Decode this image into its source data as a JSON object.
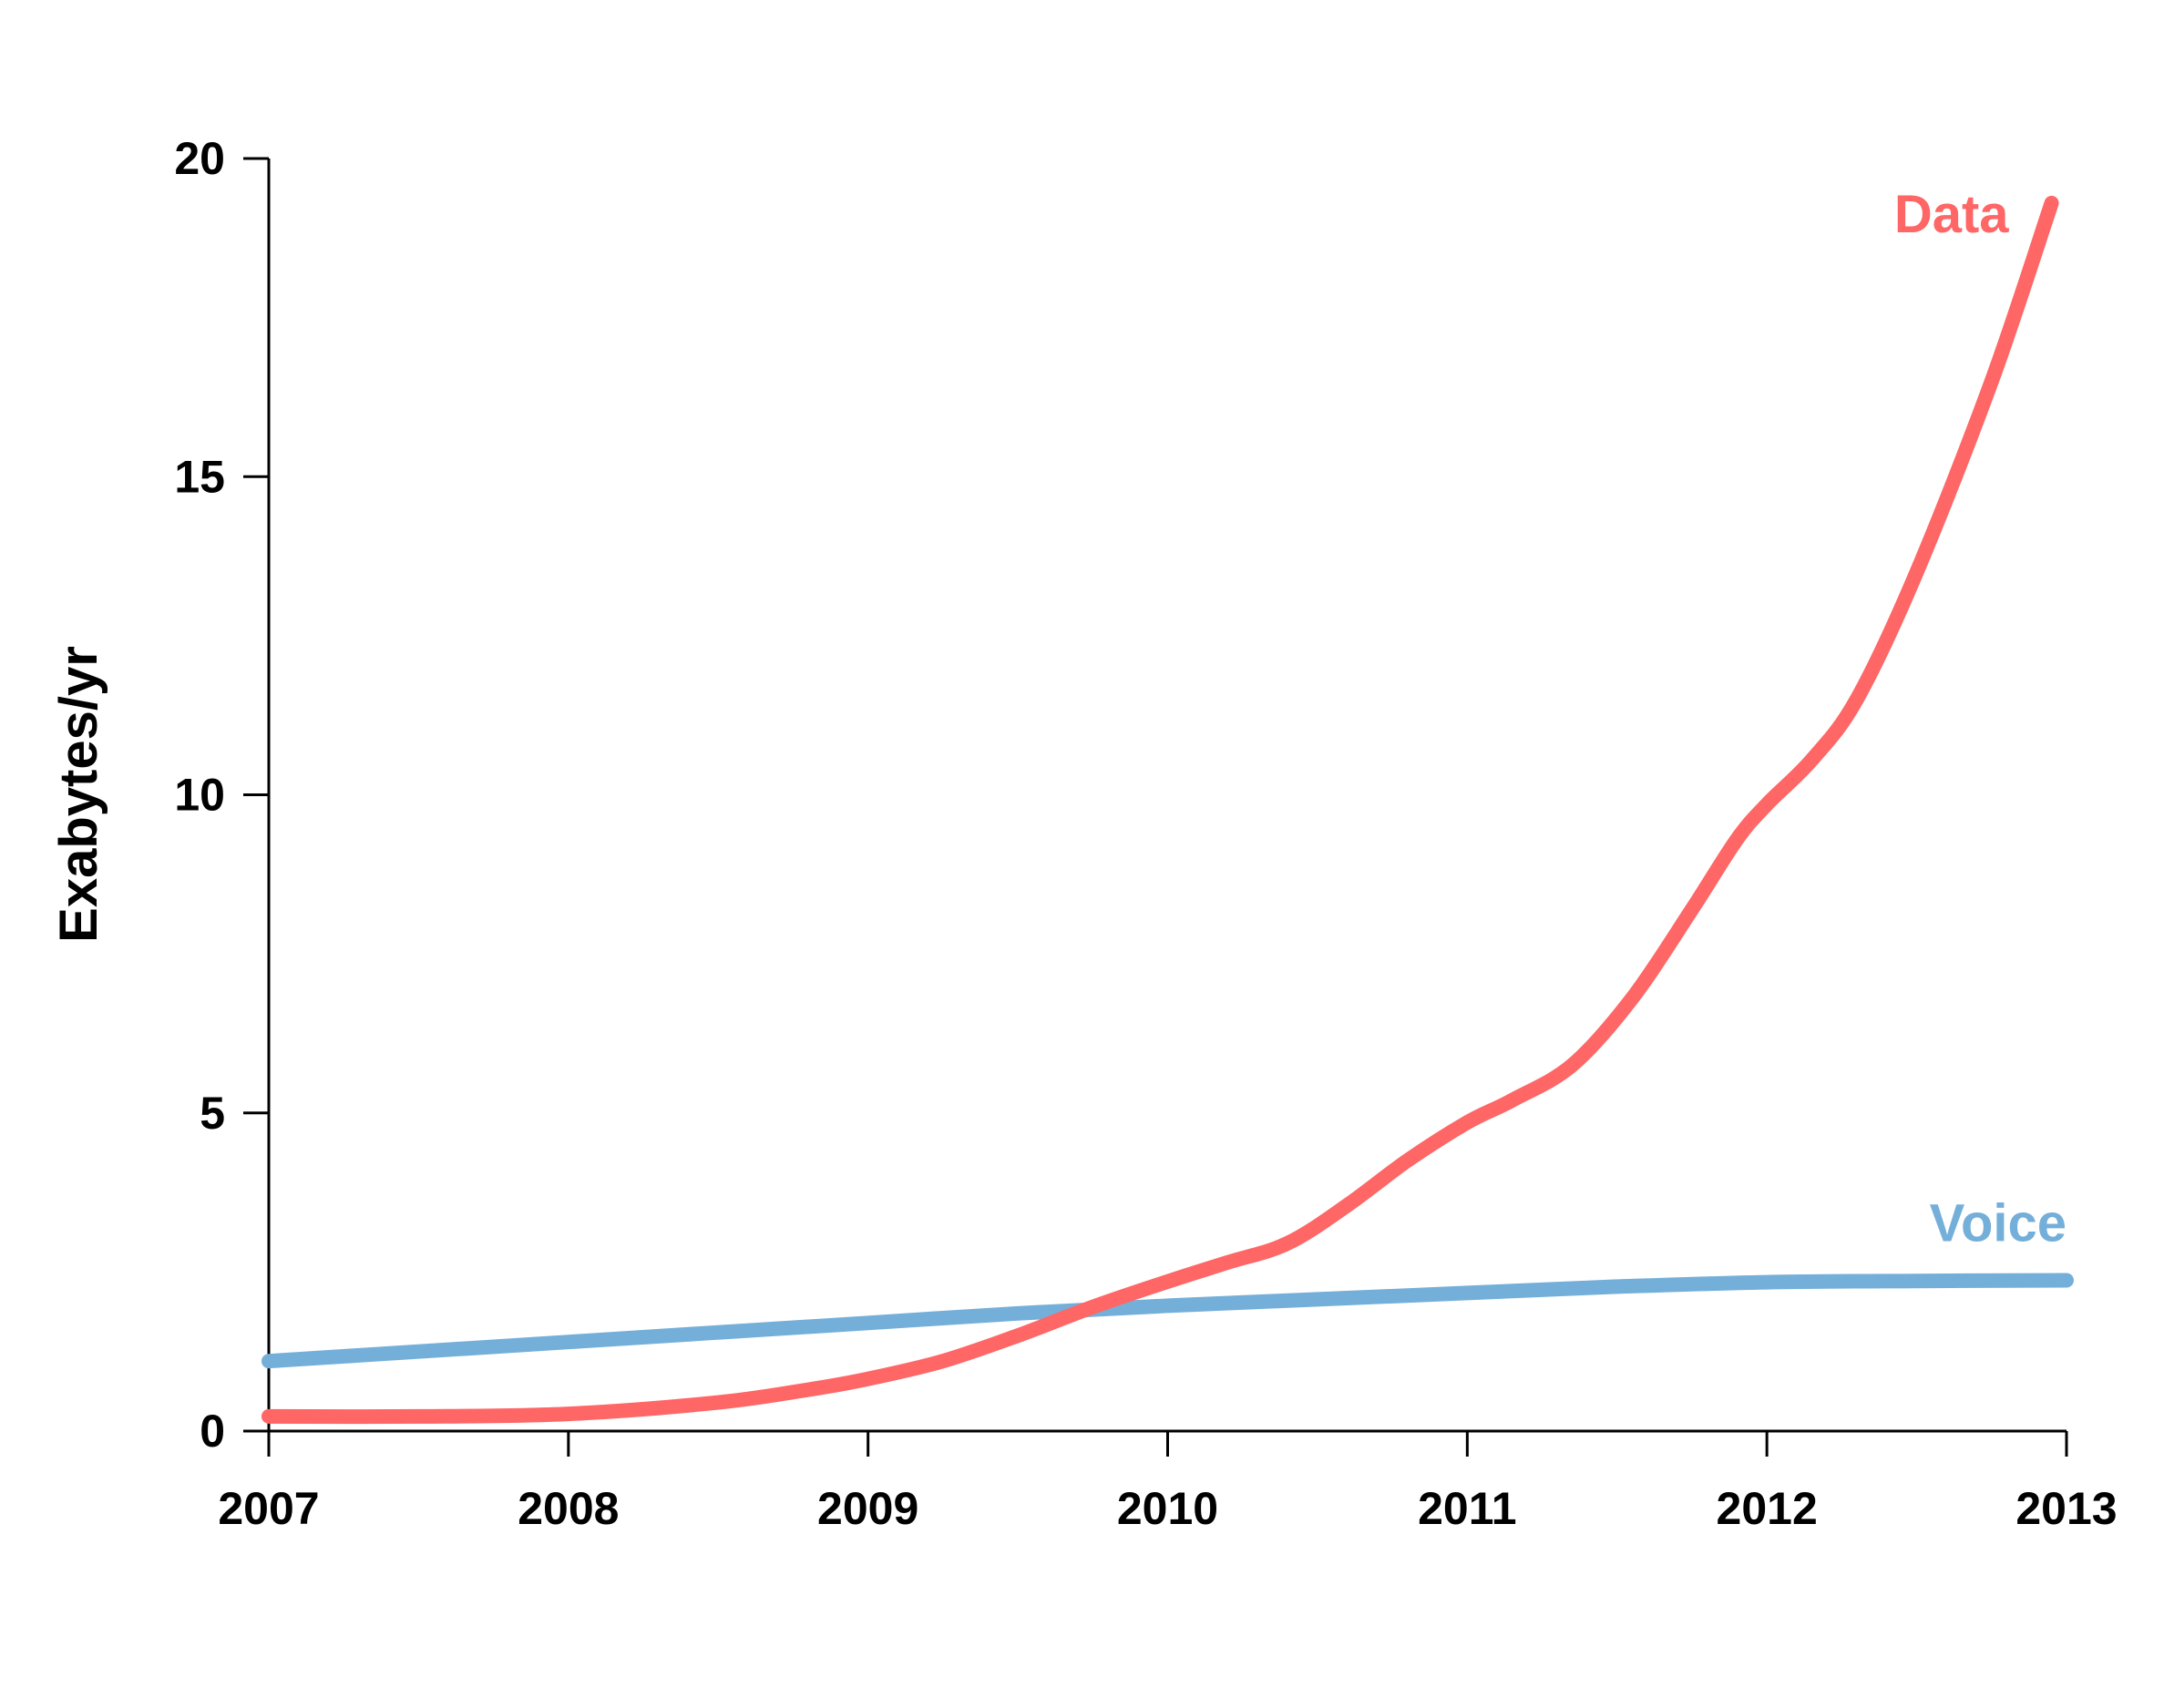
{
  "chart_data": {
    "type": "line",
    "ylabel": "Exabytes/yr",
    "xlabel": "",
    "xlim": [
      2007,
      2013
    ],
    "ylim": [
      0,
      20
    ],
    "x_ticks": [
      "2007",
      "2008",
      "2009",
      "2010",
      "2011",
      "2012",
      "2013"
    ],
    "y_ticks": [
      "0",
      "5",
      "10",
      "15",
      "20"
    ],
    "grid": false,
    "legend": "inline labels at line ends",
    "series": [
      {
        "name": "Voice",
        "color": "#74AFD9",
        "x": [
          2007.0,
          2007.5,
          2008.0,
          2008.5,
          2009.0,
          2009.5,
          2010.0,
          2010.5,
          2011.0,
          2011.5,
          2012.0,
          2012.5,
          2013.0
        ],
        "y": [
          1.1,
          1.25,
          1.4,
          1.55,
          1.7,
          1.85,
          1.97,
          2.07,
          2.17,
          2.27,
          2.34,
          2.36,
          2.37
        ]
      },
      {
        "name": "Data",
        "color": "#FF6666",
        "x": [
          2007.0,
          2007.5,
          2008.0,
          2008.5,
          2008.8,
          2009.0,
          2009.25,
          2009.5,
          2009.75,
          2010.0,
          2010.2,
          2010.4,
          2010.6,
          2010.8,
          2011.0,
          2011.15,
          2011.35,
          2011.55,
          2011.75,
          2011.9,
          2012.0,
          2012.15,
          2012.3,
          2012.5,
          2012.75,
          2012.95
        ],
        "y": [
          0.23,
          0.23,
          0.27,
          0.45,
          0.65,
          0.82,
          1.1,
          1.5,
          1.95,
          2.35,
          2.65,
          2.95,
          3.55,
          4.25,
          4.85,
          5.2,
          5.75,
          6.8,
          8.2,
          9.3,
          9.85,
          10.55,
          11.5,
          13.5,
          16.5,
          19.3
        ]
      }
    ]
  }
}
